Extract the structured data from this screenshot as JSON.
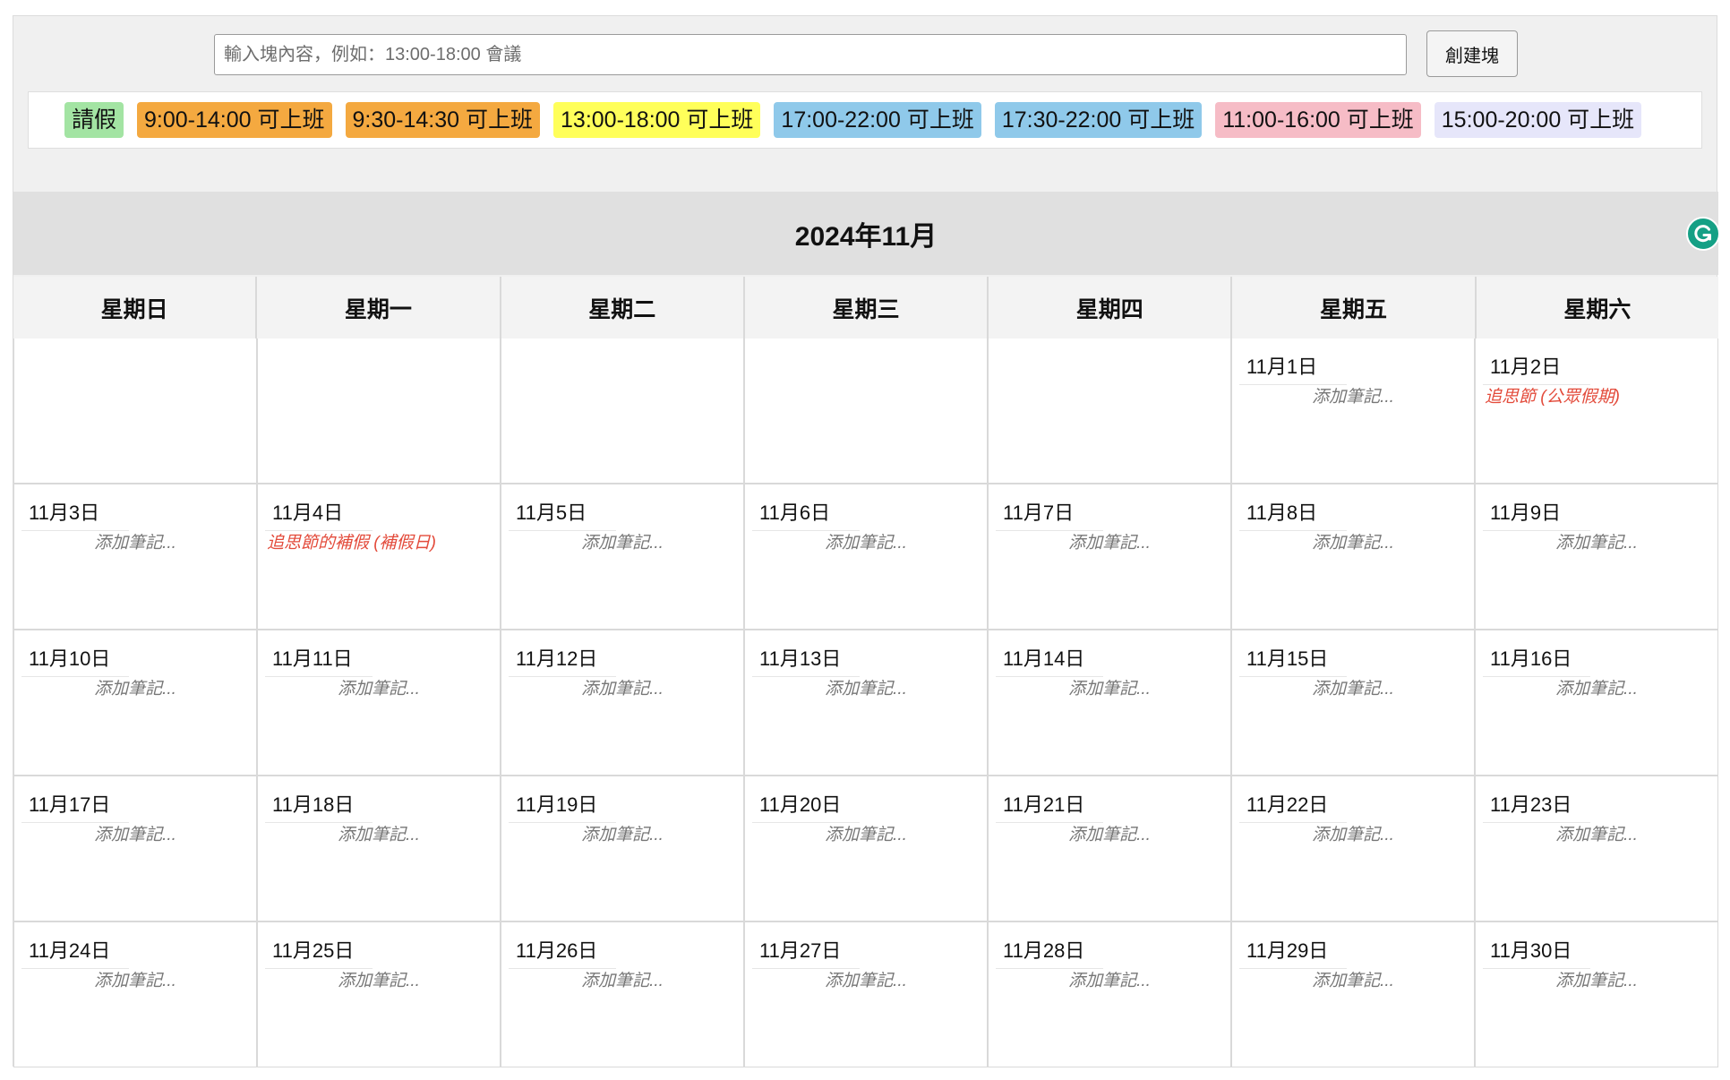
{
  "toolbar": {
    "input_value": "",
    "input_placeholder": "輸入塊內容，例如：13:00-18:00 會議",
    "create_label": "創建塊"
  },
  "palette": [
    {
      "label": "請假",
      "color": "#a3e4a3"
    },
    {
      "label": "9:00-14:00 可上班",
      "color": "#f4a940"
    },
    {
      "label": "9:30-14:30 可上班",
      "color": "#f4a940"
    },
    {
      "label": "13:00-18:00 可上班",
      "color": "#ffff5a"
    },
    {
      "label": "17:00-22:00 可上班",
      "color": "#8fc9ea"
    },
    {
      "label": "17:30-22:00 可上班",
      "color": "#8fc9ea"
    },
    {
      "label": "11:00-16:00 可上班",
      "color": "#f6bcc6"
    },
    {
      "label": "15:00-20:00 可上班",
      "color": "#e6e6fa"
    }
  ],
  "calendar": {
    "title": "2024年11月",
    "weekdays": [
      "星期日",
      "星期一",
      "星期二",
      "星期三",
      "星期四",
      "星期五",
      "星期六"
    ],
    "leading_blanks": 5,
    "note_placeholder": "添加筆記...",
    "days": [
      {
        "label": "11月1日"
      },
      {
        "label": "11月2日",
        "holiday": "追思節 (公眾假期)"
      },
      {
        "label": "11月3日"
      },
      {
        "label": "11月4日",
        "holiday": "追思節的補假 (補假日)"
      },
      {
        "label": "11月5日"
      },
      {
        "label": "11月6日"
      },
      {
        "label": "11月7日"
      },
      {
        "label": "11月8日"
      },
      {
        "label": "11月9日"
      },
      {
        "label": "11月10日"
      },
      {
        "label": "11月11日"
      },
      {
        "label": "11月12日"
      },
      {
        "label": "11月13日"
      },
      {
        "label": "11月14日"
      },
      {
        "label": "11月15日"
      },
      {
        "label": "11月16日"
      },
      {
        "label": "11月17日"
      },
      {
        "label": "11月18日"
      },
      {
        "label": "11月19日"
      },
      {
        "label": "11月20日"
      },
      {
        "label": "11月21日"
      },
      {
        "label": "11月22日"
      },
      {
        "label": "11月23日"
      },
      {
        "label": "11月24日"
      },
      {
        "label": "11月25日"
      },
      {
        "label": "11月26日"
      },
      {
        "label": "11月27日"
      },
      {
        "label": "11月28日"
      },
      {
        "label": "11月29日"
      },
      {
        "label": "11月30日"
      }
    ]
  },
  "extension": {
    "icon": "grammarly-icon",
    "color": "#15a085"
  }
}
